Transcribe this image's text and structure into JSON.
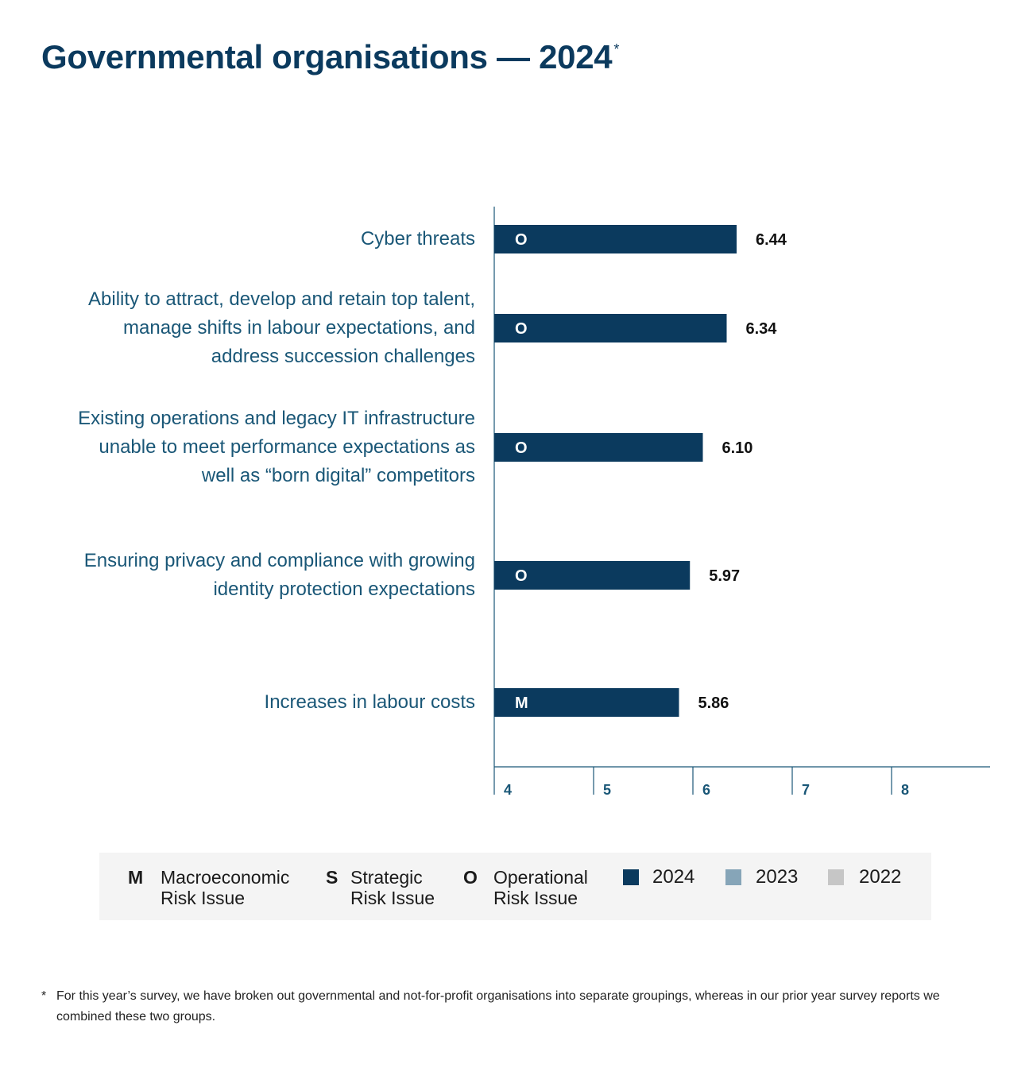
{
  "page_title": "Governmental organisations — 2024",
  "page_title_marker": "*",
  "colors": {
    "2024": "#0b3a5e",
    "2023": "#86a5b8",
    "2022": "#c6c6c6",
    "label_text": "#1a5777",
    "axis": "#1a5777"
  },
  "chart_data": {
    "type": "bar",
    "orientation": "horizontal",
    "title": "",
    "xlabel": "",
    "ylabel": "",
    "xlim": [
      4,
      9
    ],
    "x_ticks": [
      4,
      5,
      6,
      7,
      8
    ],
    "categories": [
      "Cyber threats",
      "Ability to attract, develop and retain top talent, manage shifts in labour expectations, and address succession challenges",
      "Existing operations and legacy IT infrastructure unable to meet performance expectations as well as “born digital” competitors",
      "Ensuring privacy and compliance with growing identity protection expectations",
      "Increases in labour costs"
    ],
    "category_lines": [
      [
        "Cyber threats"
      ],
      [
        "Ability to attract, develop and retain top talent,",
        "manage shifts in labour expectations, and",
        "address succession challenges"
      ],
      [
        "Existing operations and legacy IT infrastructure",
        "unable to meet performance expectations as",
        "well as “born digital” competitors"
      ],
      [
        "Ensuring privacy and compliance with growing",
        "identity protection expectations"
      ],
      [
        "Increases in labour costs"
      ]
    ],
    "risk_type": [
      "O",
      "O",
      "O",
      "O",
      "M"
    ],
    "series": [
      {
        "name": "2024",
        "values": [
          6.44,
          6.34,
          6.1,
          5.97,
          5.86
        ],
        "value_labels": [
          "6.44",
          "6.34",
          "6.10",
          "5.97",
          "5.86"
        ]
      }
    ],
    "grid": false,
    "legend_position": "bottom"
  },
  "legend": {
    "risk_types": [
      {
        "letter": "M",
        "line1": "Macroeconomic",
        "line2": "Risk Issue"
      },
      {
        "letter": "S",
        "line1": "Strategic",
        "line2": "Risk Issue"
      },
      {
        "letter": "O",
        "line1": "Operational",
        "line2": "Risk Issue"
      }
    ],
    "years": [
      {
        "label": "2024",
        "color": "#0b3a5e"
      },
      {
        "label": "2023",
        "color": "#86a5b8"
      },
      {
        "label": "2022",
        "color": "#c6c6c6"
      }
    ]
  },
  "footnote": {
    "marker": "*",
    "text": "For this year’s survey, we have broken out governmental and not-for-profit organisations into separate groupings, whereas in our prior year survey reports we combined these two groups."
  }
}
